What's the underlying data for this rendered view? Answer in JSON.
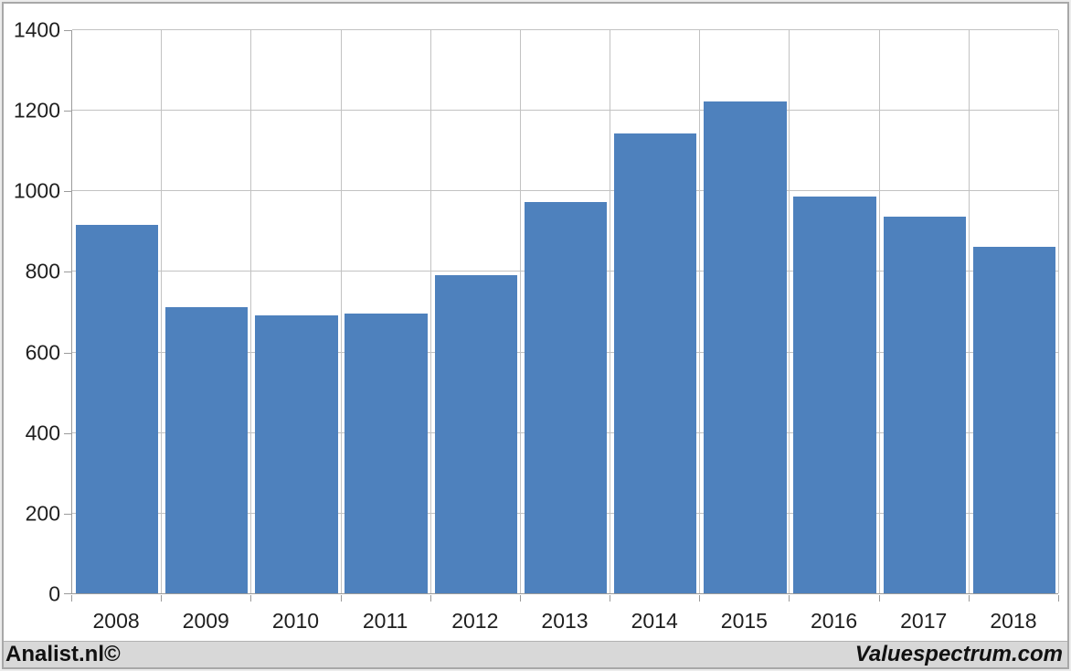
{
  "chart_data": {
    "type": "bar",
    "title": "",
    "categories": [
      "2008",
      "2009",
      "2010",
      "2011",
      "2012",
      "2013",
      "2014",
      "2015",
      "2016",
      "2017",
      "2018"
    ],
    "values": [
      915,
      710,
      690,
      695,
      790,
      972,
      1142,
      1221,
      985,
      935,
      861
    ],
    "xlabel": "",
    "ylabel": "",
    "ylim": [
      0,
      1400
    ],
    "ytick_step": 200,
    "ytick_labels": [
      "0",
      "200",
      "400",
      "600",
      "800",
      "1000",
      "1200",
      "1400"
    ],
    "grid": true,
    "legend_position": "none",
    "bar_color": "#4e81bd",
    "gridline_color": "#c2c2c2",
    "axis_color": "#9b9b9b",
    "label_color": "#1f1f1f",
    "plot_background": "#ffffff"
  },
  "footer": {
    "left": "Analist.nl©",
    "right": "Valuespectrum.com",
    "background": "#d8d8d8",
    "text_color": "#111111"
  }
}
